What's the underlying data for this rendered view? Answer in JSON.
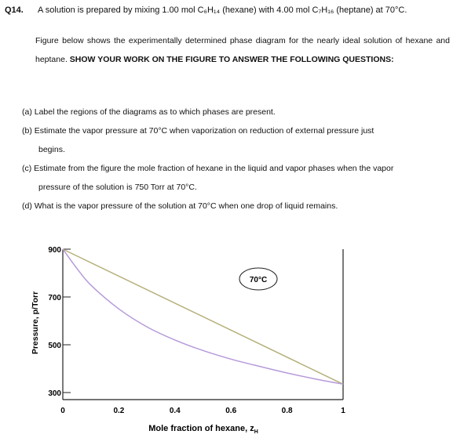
{
  "question": {
    "number": "Q14.",
    "intro": "A solution is prepared by mixing 1.00 mol C₆H₁₄ (hexane) with 4.00 mol C₇H₁₆ (heptane) at 70°C.",
    "paragraph_normal": "Figure below shows the experimentally determined phase diagram for the nearly ideal solution of hexane and heptane.",
    "paragraph_bold": "SHOW YOUR WORK ON THE FIGURE TO ANSWER THE FOLLOWING QUESTIONS:",
    "parts": {
      "a": "(a) Label the regions of the diagrams as to which phases are present.",
      "b1": "(b) Estimate the vapor pressure at 70°C when vaporization on reduction of external pressure just",
      "b2": "begins.",
      "c1": "(c) Estimate from the figure the mole fraction of hexane in the liquid and vapor phases when the vapor",
      "c2": "pressure of the solution is 750 Torr at 70°C.",
      "d": "(d) What is the vapor pressure of the solution at 70°C when one drop of liquid remains."
    }
  },
  "chart_data": {
    "type": "line",
    "ylabel": "Pressure, p/Torr",
    "xlabel": "Mole fraction of hexane, z",
    "xlabel_subscript": "H",
    "annotation": "70°C",
    "y_ticks": [
      "900",
      "700",
      "500",
      "300"
    ],
    "x_ticks": [
      "0",
      "0.2",
      "0.4",
      "0.6",
      "0.8",
      "1"
    ],
    "xlim": [
      0,
      1
    ],
    "ylim": [
      300,
      900
    ],
    "colors": {
      "liquid": "#b5b07a",
      "vapor": "#b69ad9",
      "axis": "#222222"
    },
    "series": [
      {
        "points": [
          [
            0,
            900
          ],
          [
            1,
            335
          ]
        ]
      },
      {
        "points": [
          [
            0,
            900
          ],
          [
            0.05,
            820
          ],
          [
            0.1,
            750
          ],
          [
            0.2,
            650
          ],
          [
            0.3,
            575
          ],
          [
            0.4,
            520
          ],
          [
            0.5,
            476
          ],
          [
            0.6,
            440
          ],
          [
            0.7,
            410
          ],
          [
            0.8,
            382
          ],
          [
            0.9,
            357
          ],
          [
            1,
            335
          ]
        ]
      }
    ]
  }
}
